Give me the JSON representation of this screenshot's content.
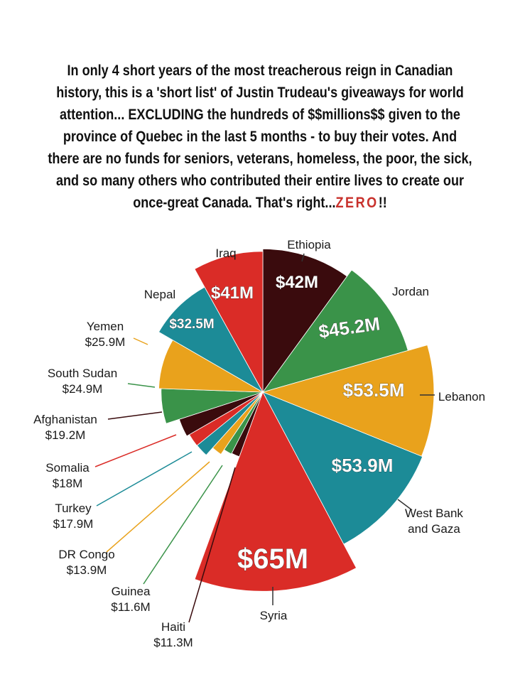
{
  "headline": {
    "text": "In only 4 short years of the most treacherous reign in Canadian history, this is a 'short list' of Justin Trudeau's giveaways for world attention... EXCLUDING the hundreds of $$millions$$ given to the province of Quebec in the last 5 months - to buy their votes. And there are no funds for seniors, veterans, homeless, the poor, the sick, and so many others who contributed their entire lives to create our once-great Canada. That's right...",
    "emphasis": "ZERO",
    "suffix": "!!"
  },
  "chart_data": {
    "type": "pie",
    "title": "",
    "slices": [
      {
        "label": "Ethiopia",
        "value_label": "$42M",
        "value": 42,
        "color": "#3a0b0d"
      },
      {
        "label": "Jordan",
        "value_label": "$45.2M",
        "value": 45.2,
        "color": "#3a9349"
      },
      {
        "label": "Lebanon",
        "value_label": "$53.5M",
        "value": 53.5,
        "color": "#e9a21c"
      },
      {
        "label": "West Bank and Gaza",
        "value_label": "$53.9M",
        "value": 53.9,
        "color": "#1c8b97"
      },
      {
        "label": "Syria",
        "value_label": "$65M",
        "value": 65,
        "color": "#da2c27"
      },
      {
        "label": "Haiti",
        "value_label": "$11.3M",
        "value": 11.3,
        "color": "#3a0b0d"
      },
      {
        "label": "Guinea",
        "value_label": "$11.6M",
        "value": 11.6,
        "color": "#3a9349"
      },
      {
        "label": "DR Congo",
        "value_label": "$13.9M",
        "value": 13.9,
        "color": "#e9a21c"
      },
      {
        "label": "Turkey",
        "value_label": "$17.9M",
        "value": 17.9,
        "color": "#1c8b97"
      },
      {
        "label": "Somalia",
        "value_label": "$18M",
        "value": 18,
        "color": "#da2c27"
      },
      {
        "label": "Afghanistan",
        "value_label": "$19.2M",
        "value": 19.2,
        "color": "#3a0b0d"
      },
      {
        "label": "South Sudan",
        "value_label": "$24.9M",
        "value": 24.9,
        "color": "#3a9349"
      },
      {
        "label": "Yemen",
        "value_label": "$25.9M",
        "value": 25.9,
        "color": "#e9a21c"
      },
      {
        "label": "Nepal",
        "value_label": "$32.5M",
        "value": 32.5,
        "color": "#1c8b97"
      },
      {
        "label": "Iraq",
        "value_label": "$41M",
        "value": 41,
        "color": "#da2c27"
      }
    ]
  }
}
